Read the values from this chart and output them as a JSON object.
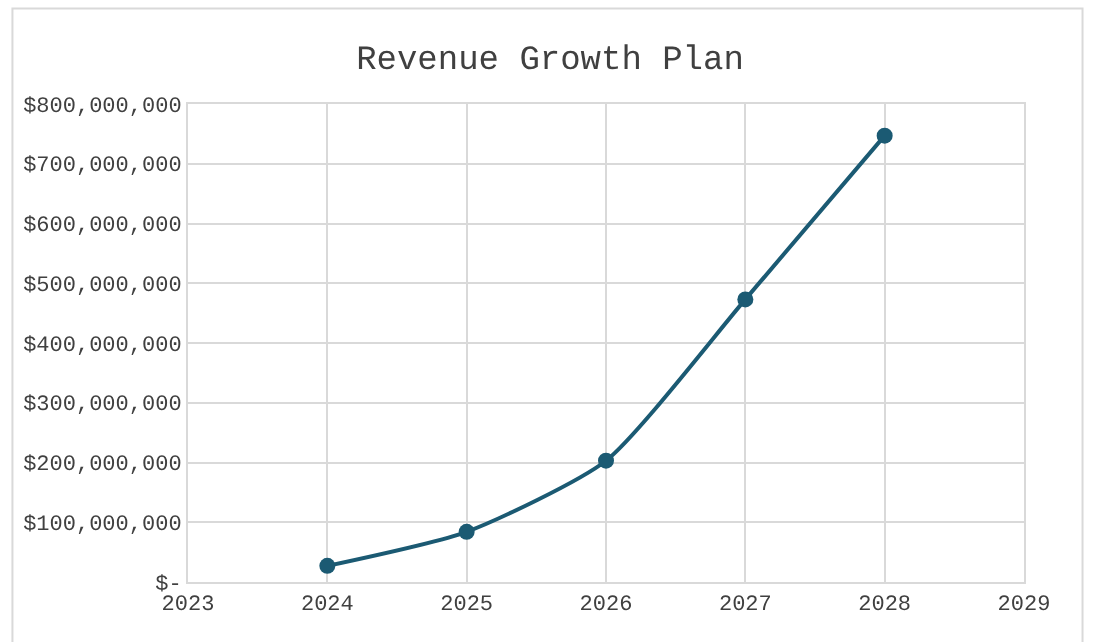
{
  "chart_data": {
    "type": "line",
    "title": "Revenue Growth Plan",
    "x": [
      2024,
      2025,
      2026,
      2027,
      2028
    ],
    "series": [
      {
        "color": "#1b5a73",
        "values": [
          27000000,
          84000000,
          203000000,
          473000000,
          747000000
        ]
      }
    ],
    "xlim": [
      2023,
      2029
    ],
    "xticks": [
      2023,
      2024,
      2025,
      2026,
      2027,
      2028,
      2029
    ],
    "ylim": [
      0,
      800000000
    ],
    "yticks": [
      {
        "value": 0,
        "label": "$-"
      },
      {
        "value": 100000000,
        "label": "$100,000,000"
      },
      {
        "value": 200000000,
        "label": "$200,000,000"
      },
      {
        "value": 300000000,
        "label": "$300,000,000"
      },
      {
        "value": 400000000,
        "label": "$400,000,000"
      },
      {
        "value": 500000000,
        "label": "$500,000,000"
      },
      {
        "value": 600000000,
        "label": "$600,000,000"
      },
      {
        "value": 700000000,
        "label": "$700,000,000"
      },
      {
        "value": 800000000,
        "label": "$800,000,000"
      }
    ],
    "grid": true,
    "marker": "circle",
    "line_style": "solid",
    "legend": false
  }
}
